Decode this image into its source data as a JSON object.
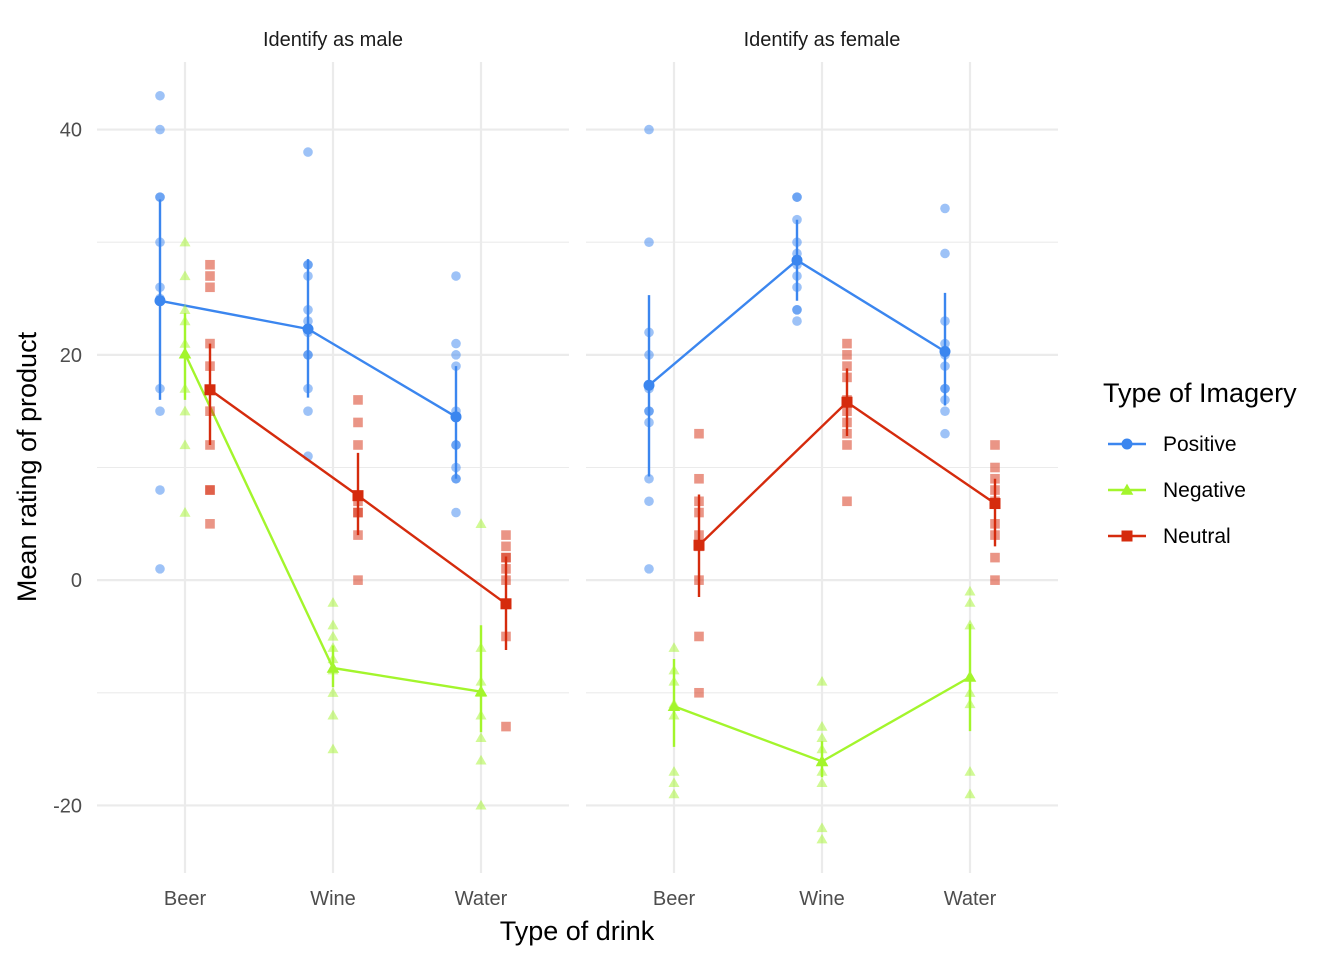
{
  "chart_data": {
    "type": "line",
    "facets": [
      "Identify as male",
      "Identify as female"
    ],
    "categories": [
      "Beer",
      "Wine",
      "Water"
    ],
    "xlabel": "Type of drink",
    "ylabel": "Mean rating of product",
    "ylim": [
      -26,
      46
    ],
    "yticks": [
      -20,
      0,
      20,
      40
    ],
    "legend": {
      "title": "Type of Imagery",
      "position": "right"
    },
    "series": [
      {
        "name": "Positive",
        "color": "#3b86ef",
        "marker": "circle",
        "means": [
          [
            24.8,
            22.3,
            14.5
          ],
          [
            17.3,
            28.4,
            20.3
          ]
        ],
        "err_low": [
          [
            16.0,
            16.2,
            9.0
          ],
          [
            9.2,
            24.8,
            15.5
          ]
        ],
        "err_high": [
          [
            33.8,
            28.5,
            19.0
          ],
          [
            25.3,
            32.0,
            25.5
          ]
        ],
        "points": [
          [
            [
              43,
              40,
              34,
              34,
              30,
              26,
              25,
              17,
              15,
              8,
              1
            ],
            [
              38,
              28,
              28,
              27,
              24,
              23,
              22,
              20,
              20,
              17,
              15,
              11
            ],
            [
              27,
              21,
              20,
              19,
              15,
              12,
              12,
              10,
              9,
              9,
              6
            ]
          ],
          [
            [
              40,
              30,
              22,
              20,
              17,
              15,
              15,
              14,
              9,
              7,
              1
            ],
            [
              34,
              34,
              32,
              30,
              29,
              28,
              27,
              26,
              24,
              24,
              23
            ],
            [
              33,
              29,
              23,
              21,
              20,
              19,
              17,
              17,
              16,
              15,
              13
            ]
          ]
        ]
      },
      {
        "name": "Negative",
        "color": "#a3f52c",
        "marker": "triangle",
        "means": [
          [
            20.1,
            -7.8,
            -9.9
          ],
          [
            -11.2,
            -16.1,
            -8.6
          ]
        ],
        "err_low": [
          [
            16.0,
            -9.5,
            -13.5
          ],
          [
            -14.8,
            -17.5,
            -13.4
          ]
        ],
        "err_high": [
          [
            23.7,
            -5.8,
            -4.0
          ],
          [
            -7.0,
            -14.3,
            -3.9
          ]
        ],
        "points": [
          [
            [
              30,
              27,
              24,
              23,
              21,
              17,
              15,
              12,
              6
            ],
            [
              -2,
              -4,
              -5,
              -6,
              -7,
              -8,
              -10,
              -12,
              -15
            ],
            [
              5,
              -6,
              -9,
              -10,
              -12,
              -14,
              -16,
              -20
            ]
          ],
          [
            [
              -6,
              -8,
              -9,
              -11,
              -12,
              -17,
              -18,
              -19
            ],
            [
              -9,
              -13,
              -14,
              -15,
              -16,
              -17,
              -18,
              -22,
              -23
            ],
            [
              -1,
              -2,
              -4,
              -10,
              -11,
              -17,
              -19
            ]
          ]
        ]
      },
      {
        "name": "Neutral",
        "color": "#d52b0d",
        "marker": "square",
        "means": [
          [
            16.9,
            7.5,
            -2.1
          ],
          [
            3.1,
            15.8,
            6.8
          ]
        ],
        "err_low": [
          [
            12.0,
            4.0,
            -6.2
          ],
          [
            -1.5,
            12.8,
            3.0
          ]
        ],
        "err_high": [
          [
            21.0,
            11.3,
            2.1
          ],
          [
            7.6,
            18.8,
            9.0
          ]
        ],
        "points": [
          [
            [
              28,
              27,
              26,
              21,
              19,
              15,
              12,
              8,
              8,
              5
            ],
            [
              16,
              14,
              12,
              7,
              6,
              6,
              4,
              0
            ],
            [
              4,
              3,
              2,
              2,
              1,
              0,
              -5,
              -13
            ]
          ],
          [
            [
              13,
              9,
              7,
              6,
              4,
              3,
              0,
              -5,
              -10
            ],
            [
              21,
              20,
              19,
              18,
              16,
              15,
              14,
              13,
              12,
              7
            ],
            [
              12,
              10,
              9,
              8,
              7,
              5,
              4,
              2,
              0
            ]
          ]
        ]
      }
    ]
  }
}
